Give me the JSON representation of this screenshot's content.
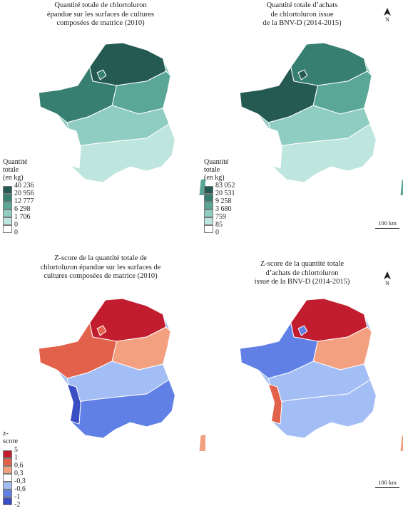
{
  "colors": {
    "green": [
      "#ffffff",
      "#bfe6de",
      "#8fcdc2",
      "#5aa797",
      "#377f71",
      "#245a51"
    ],
    "zscore": [
      "#3a4ec4",
      "#6080e6",
      "#a3bdf5",
      "#f2a07f",
      "#e2614a",
      "#c21c2f"
    ],
    "border": "#ffffff",
    "outline": "#7a7a7a"
  },
  "panels": [
    {
      "title_lines": [
        "Quantité totale de chlortoluron",
        "épandue sur les surfaces de cultures",
        "composées de matrice (2010)"
      ],
      "palette": "green",
      "fill": [
        5,
        4,
        3,
        2,
        1,
        0
      ],
      "legend_title": [
        "Quantité",
        "totale",
        "(en kg)"
      ],
      "legend_values": [
        "40 236",
        "20 956",
        "12 777",
        "6 298",
        "1 706",
        "0",
        "0"
      ]
    },
    {
      "title_lines": [
        "Quantité totale d’achats",
        "de chlortoluron issue",
        "de la BNV-D (2014-2015)"
      ],
      "palette": "green",
      "fill": [
        4,
        5,
        3,
        2,
        1,
        0
      ],
      "legend_title": [
        "Quantité",
        "totale",
        "(en kg)"
      ],
      "legend_values": [
        "83 052",
        "20 531",
        "9 258",
        "3 680",
        "759",
        "85",
        "0"
      ],
      "north": "N",
      "scale": "100 km"
    },
    {
      "title_lines": [
        "Z-score de la quantité totale de",
        "chlortoluron épandue sur les surfaces de",
        "cultures composées de matrice (2010)"
      ],
      "palette": "zscore",
      "fill": [
        5,
        4,
        3,
        2,
        1,
        0
      ],
      "legend_title": [
        "z-score"
      ],
      "legend_values": [
        "5",
        "1",
        "0,6",
        "0,3",
        "-0,3",
        "-0,6",
        "-1",
        "-2"
      ]
    },
    {
      "title_lines": [
        "Z-score de la quantité totale",
        "d’achats de chlortoluron",
        "issue de la BNV-D (2014-2015)"
      ],
      "palette": "zscore",
      "fill": [
        5,
        1,
        3,
        2,
        2,
        4
      ],
      "north": "N",
      "scale": "100 km"
    }
  ]
}
